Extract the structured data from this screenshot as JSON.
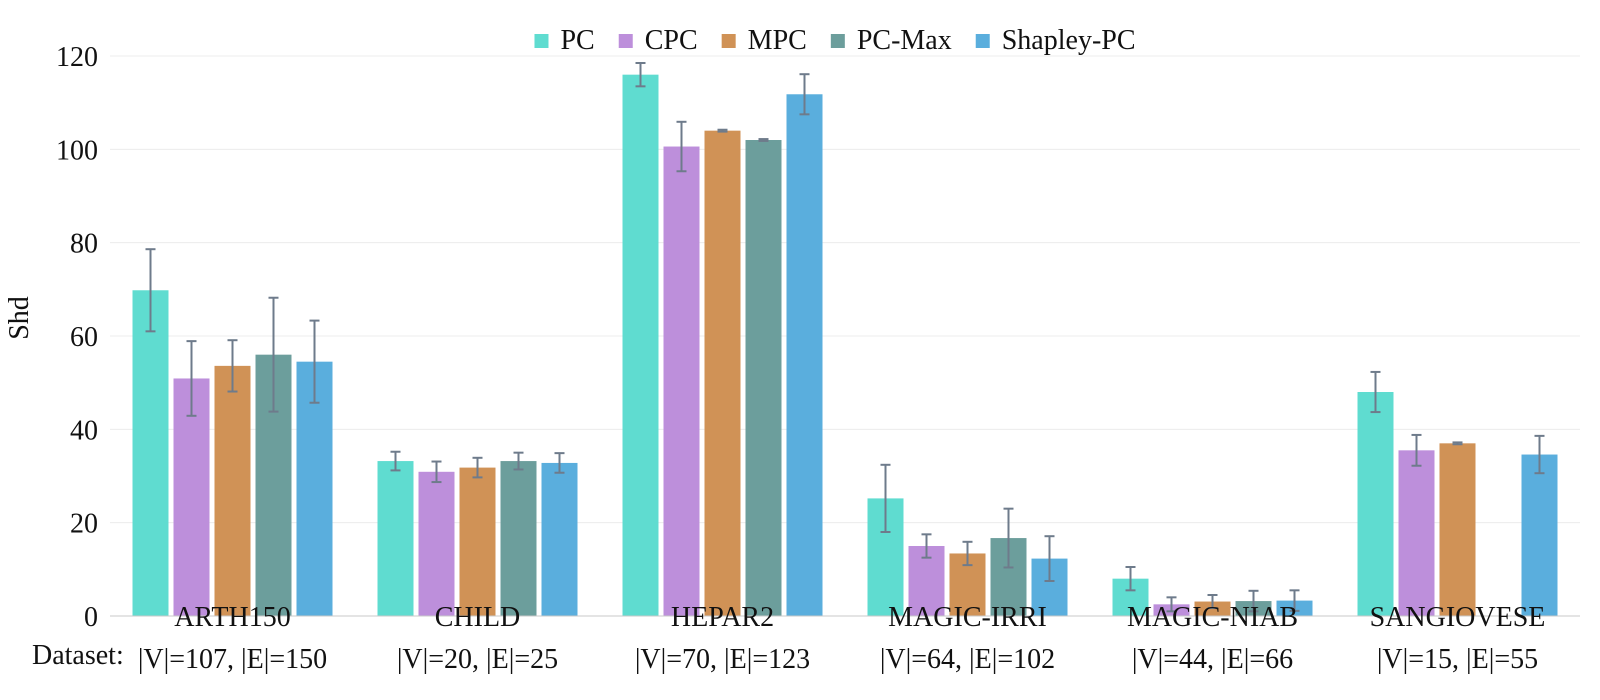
{
  "chart_data": {
    "type": "bar",
    "title": "",
    "xlabel": "Dataset:",
    "ylabel": "Shd",
    "ylim": [
      0,
      120
    ],
    "yticks": [
      0,
      20,
      40,
      60,
      80,
      100,
      120
    ],
    "grid": true,
    "legend": "top-center",
    "categories": [
      {
        "name": "ARTH150",
        "sub": "|V|=107, |E|=150"
      },
      {
        "name": "CHILD",
        "sub": "|V|=20, |E|=25"
      },
      {
        "name": "HEPAR2",
        "sub": "|V|=70, |E|=123"
      },
      {
        "name": "MAGIC-IRRI",
        "sub": "|V|=64, |E|=102"
      },
      {
        "name": "MAGIC-NIAB",
        "sub": "|V|=44, |E|=66"
      },
      {
        "name": "SANGIOVESE",
        "sub": "|V|=15, |E|=55"
      }
    ],
    "series": [
      {
        "name": "PC",
        "color": "#5fdcd0",
        "values": [
          69.8,
          33.2,
          116.0,
          25.2,
          8.0,
          48.0
        ],
        "errors": [
          8.8,
          2.0,
          2.5,
          7.2,
          2.5,
          4.3
        ]
      },
      {
        "name": "CPC",
        "color": "#bd8fdb",
        "values": [
          50.9,
          30.9,
          100.6,
          15.0,
          2.5,
          35.5
        ],
        "errors": [
          8.0,
          2.2,
          5.3,
          2.5,
          1.5,
          3.3
        ]
      },
      {
        "name": "MPC",
        "color": "#d09256",
        "values": [
          53.6,
          31.8,
          104.0,
          13.4,
          3.1,
          37.0
        ],
        "errors": [
          5.5,
          2.1,
          0.2,
          2.5,
          1.4,
          0.2
        ]
      },
      {
        "name": "PC-Max",
        "color": "#6c9e9c",
        "values": [
          56.0,
          33.2,
          102.0,
          16.7,
          3.2,
          null
        ],
        "errors": [
          12.2,
          1.8,
          0.2,
          6.3,
          2.2,
          null
        ]
      },
      {
        "name": "Shapley-PC",
        "color": "#5aaedd",
        "values": [
          54.5,
          32.8,
          111.8,
          12.3,
          3.3,
          34.6
        ],
        "errors": [
          8.8,
          2.1,
          4.3,
          4.8,
          2.2,
          4.0
        ]
      }
    ]
  }
}
